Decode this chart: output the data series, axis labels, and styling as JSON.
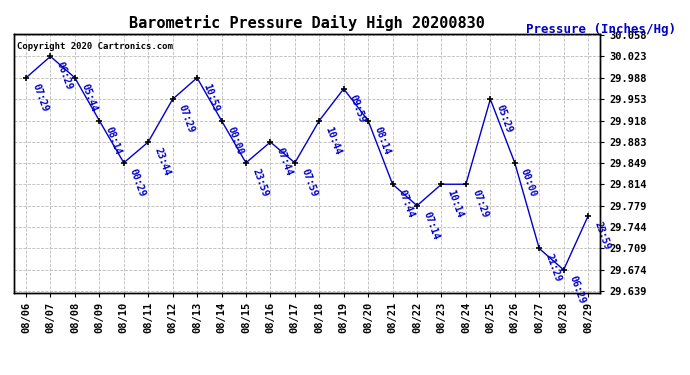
{
  "title": "Barometric Pressure Daily High 20200830",
  "ylabel": "Pressure (Inches/Hg)",
  "copyright": "Copyright 2020 Cartronics.com",
  "line_color": "#0000cc",
  "marker_color": "#000000",
  "background_color": "#ffffff",
  "grid_color": "#bbbbbb",
  "ylim_min": 29.639,
  "ylim_max": 30.058,
  "yticks": [
    29.639,
    29.674,
    29.709,
    29.744,
    29.779,
    29.814,
    29.849,
    29.883,
    29.918,
    29.953,
    29.988,
    30.023,
    30.058
  ],
  "dates": [
    "08/06",
    "08/07",
    "08/08",
    "08/09",
    "08/10",
    "08/11",
    "08/12",
    "08/13",
    "08/14",
    "08/15",
    "08/16",
    "08/17",
    "08/18",
    "08/19",
    "08/20",
    "08/21",
    "08/22",
    "08/23",
    "08/24",
    "08/25",
    "08/26",
    "08/27",
    "08/28",
    "08/29"
  ],
  "values": [
    29.988,
    30.023,
    29.988,
    29.918,
    29.849,
    29.883,
    29.953,
    29.988,
    29.918,
    29.849,
    29.883,
    29.849,
    29.918,
    29.97,
    29.918,
    29.814,
    29.779,
    29.814,
    29.814,
    29.953,
    29.849,
    29.709,
    29.674,
    29.762
  ],
  "labels": [
    "07:29",
    "06:29",
    "05:44",
    "08:14",
    "00:29",
    "23:44",
    "07:29",
    "10:59",
    "00:00",
    "23:59",
    "07:44",
    "07:59",
    "10:44",
    "09:59",
    "08:14",
    "07:44",
    "07:14",
    "10:14",
    "07:29",
    "05:29",
    "00:00",
    "21:29",
    "06:29",
    "23:59"
  ],
  "title_fontsize": 11,
  "label_fontsize": 7,
  "tick_fontsize": 7.5,
  "ylabel_fontsize": 9
}
